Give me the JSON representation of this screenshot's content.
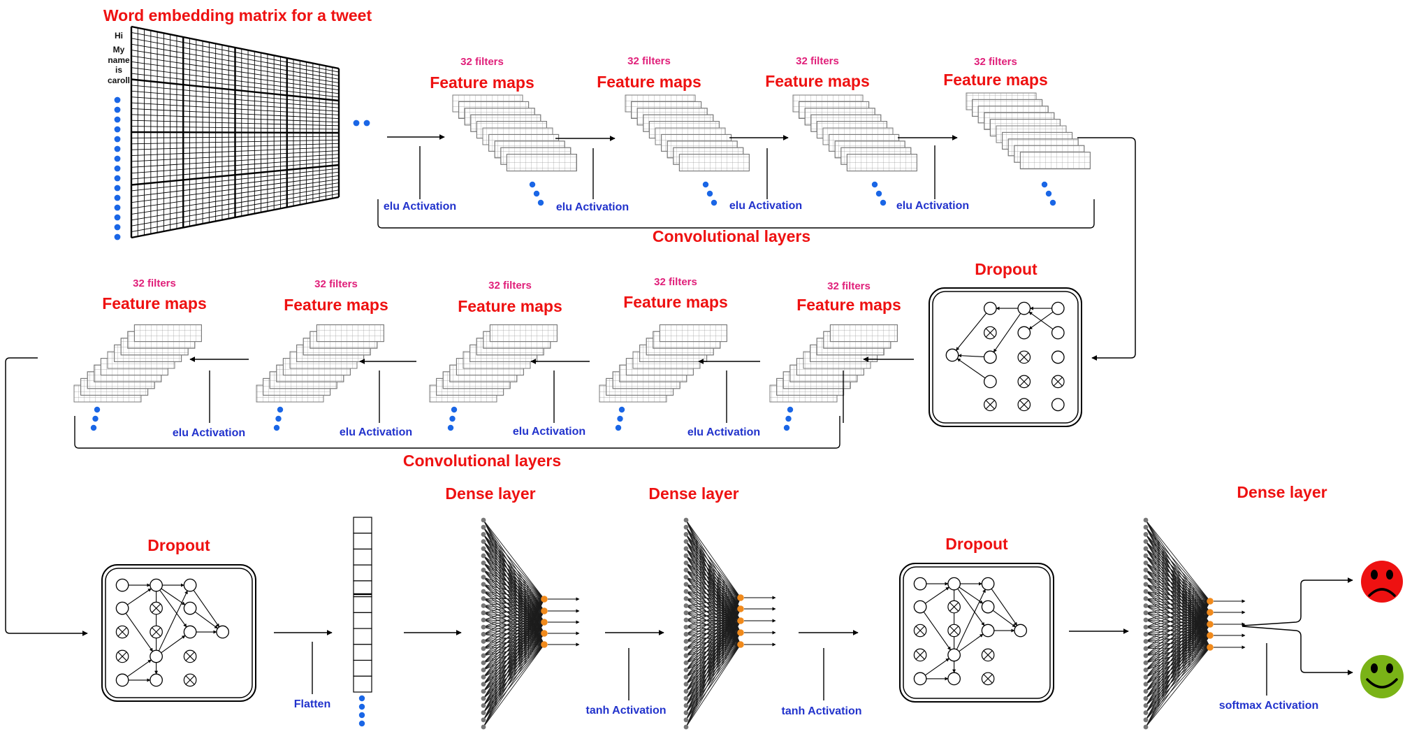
{
  "embedding_title": "Word embedding matrix for a tweet",
  "tweet_words": [
    "Hi",
    "My",
    "name",
    "is",
    "caroll"
  ],
  "feature_map_title": "Feature maps",
  "filters_label": "32 filters",
  "conv_section_label": "Convolutional layers",
  "dropout_label": "Dropout",
  "dense_label": "Dense layer",
  "activations": {
    "elu": "elu Activation",
    "flatten": "Flatten",
    "tanh": "tanh Activation",
    "softmax": "softmax Activation"
  },
  "outputs": [
    "negative-face",
    "positive-face"
  ],
  "colors": {
    "title": "#ee1111",
    "filters": "#e0207a",
    "activation": "#2233cc",
    "ellipsis_dot": "#1a66e6",
    "dense_output_node": "#f08a1c",
    "sad_face": "#ee1111",
    "happy_face": "#7ab317"
  }
}
